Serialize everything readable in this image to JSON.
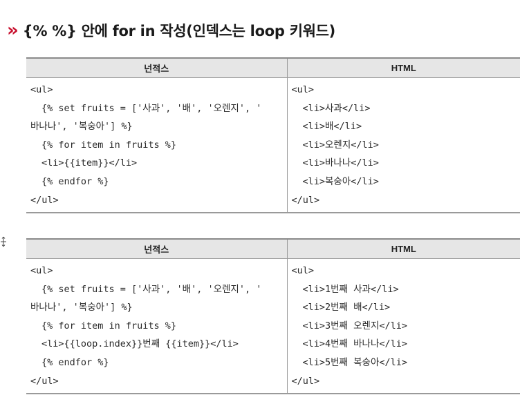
{
  "heading": {
    "marker": "»",
    "text": "{% %} 안에 for in 작성(인덱스는 loop 키워드)"
  },
  "tables": [
    {
      "headers": [
        "넌적스",
        "HTML"
      ],
      "left_lines": [
        "<ul>",
        "{% set fruits = ['사과', '배', '오렌지', '",
        "바나나', '복숭아'] %}",
        "{% for item in fruits %}",
        "<li>{{item}}</li>",
        "{% endfor %}",
        "</ul>"
      ],
      "right_lines": [
        "<ul>",
        "<li>사과</li>",
        "<li>배</li>",
        "<li>오렌지</li>",
        "<li>바나나</li>",
        "<li>복숭아</li>",
        "</ul>"
      ]
    },
    {
      "headers": [
        "넌적스",
        "HTML"
      ],
      "left_lines": [
        "<ul>",
        "{% set fruits = ['사과', '배', '오렌지', '",
        "바나나', '복숭아'] %}",
        "{% for item in fruits %}",
        "<li>{{loop.index}}번째 {{item}}</li>",
        "{% endfor %}",
        "</ul>"
      ],
      "right_lines": [
        "<ul>",
        "<li>1번째 사과</li>",
        "<li>2번째 배</li>",
        "<li>3번째 오렌지</li>",
        "<li>4번째 바나나</li>",
        "<li>5번째 복숭아</li>",
        "</ul>"
      ]
    }
  ],
  "colors": {
    "heading_marker": "#c8102e",
    "header_background": "#e6e6e6",
    "border": "#9a9a9a"
  }
}
